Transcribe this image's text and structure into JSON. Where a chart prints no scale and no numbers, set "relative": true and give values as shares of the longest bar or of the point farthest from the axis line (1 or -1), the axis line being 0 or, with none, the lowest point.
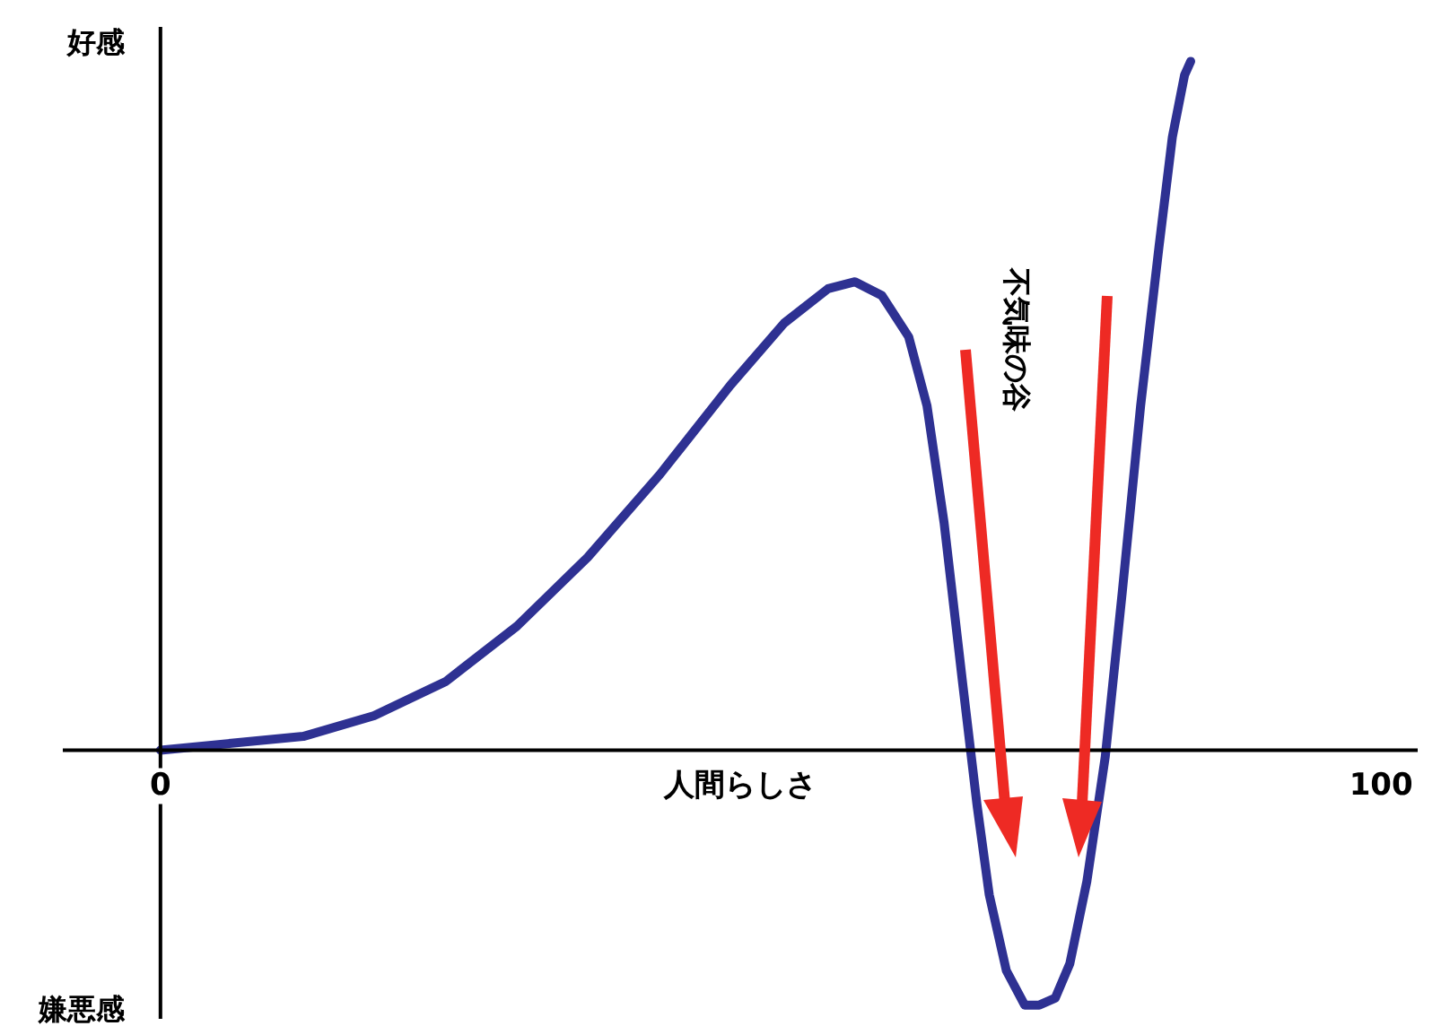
{
  "chart_data": {
    "type": "line",
    "relative": true,
    "xlabel": "人間らしさ",
    "annotations": [
      "好感",
      "嫌悪感",
      "不気味の谷"
    ],
    "xlim": [
      -8,
      103
    ],
    "xticks": [
      0,
      100
    ],
    "series": [
      {
        "color": "#2e3192",
        "x": [
          0,
          5.8,
          11.7,
          17.5,
          23.4,
          29.2,
          35,
          40.9,
          46.7,
          51.1,
          54.7,
          56.9,
          59.1,
          61.3,
          62.8,
          64.2,
          65.7,
          66.9,
          67.9,
          69.3,
          70.8,
          72,
          73.3,
          74.5,
          75.9,
          77.4,
          78.8,
          80.3,
          81.8,
          82.9,
          83.9,
          84.4
        ],
        "values": [
          0,
          0.01,
          0.02,
          0.05,
          0.1,
          0.18,
          0.28,
          0.4,
          0.53,
          0.62,
          0.67,
          0.68,
          0.66,
          0.6,
          0.5,
          0.33,
          0.1,
          -0.08,
          -0.21,
          -0.32,
          -0.37,
          -0.37,
          -0.36,
          -0.31,
          -0.19,
          -0.01,
          0.23,
          0.5,
          0.73,
          0.89,
          0.98,
          1
        ]
      }
    ],
    "legend": false,
    "marker": "none",
    "line_style": "solid"
  }
}
